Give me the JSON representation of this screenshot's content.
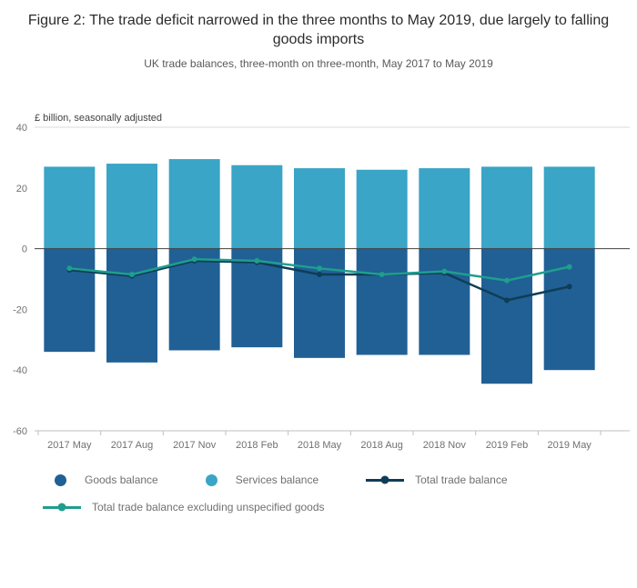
{
  "header": {
    "title": "Figure 2: The trade deficit narrowed in the three months to May 2019, due largely to falling goods imports",
    "subtitle": "UK trade balances, three-month on three-month, May 2017 to May 2019"
  },
  "chart_data": {
    "type": "bar",
    "unit_label": "£ billion, seasonally adjusted",
    "categories": [
      "2017 May",
      "2017 Aug",
      "2017 Nov",
      "2018 Feb",
      "2018 May",
      "2018 Aug",
      "2018 Nov",
      "2019 Feb",
      "2019 May"
    ],
    "series": [
      {
        "name": "Goods balance",
        "type": "bar",
        "color": "#206095",
        "values": [
          -34,
          -37.5,
          -33.5,
          -32.5,
          -36,
          -35,
          -35,
          -44.5,
          -40
        ]
      },
      {
        "name": "Services balance",
        "type": "bar",
        "color": "#3aa5c6",
        "values": [
          27,
          28,
          29.5,
          27.5,
          26.5,
          26,
          26.5,
          27,
          27
        ]
      },
      {
        "name": "Total trade balance",
        "type": "line",
        "color": "#0f3d57",
        "values": [
          -7,
          -9,
          -4,
          -4.5,
          -8.5,
          -8.5,
          -8,
          -17,
          -12.5
        ]
      },
      {
        "name": "Total trade balance excluding unspecified goods",
        "type": "line",
        "color": "#1f9e8e",
        "values": [
          -6.5,
          -8.5,
          -3.5,
          -4,
          -6.5,
          -8.5,
          -7.5,
          -10.5,
          -6
        ]
      }
    ],
    "ylim": [
      -60,
      40
    ],
    "yticks": [
      40,
      20,
      0,
      -20,
      -40,
      -60
    ],
    "legend_position": "bottom",
    "grid": "top-and-zero-lines-only",
    "axis_colors": {
      "zero_line": "#414042",
      "grid_line": "#d9d9d9",
      "axis_line": "#bfbfbf",
      "tick_label": "#707071"
    }
  }
}
